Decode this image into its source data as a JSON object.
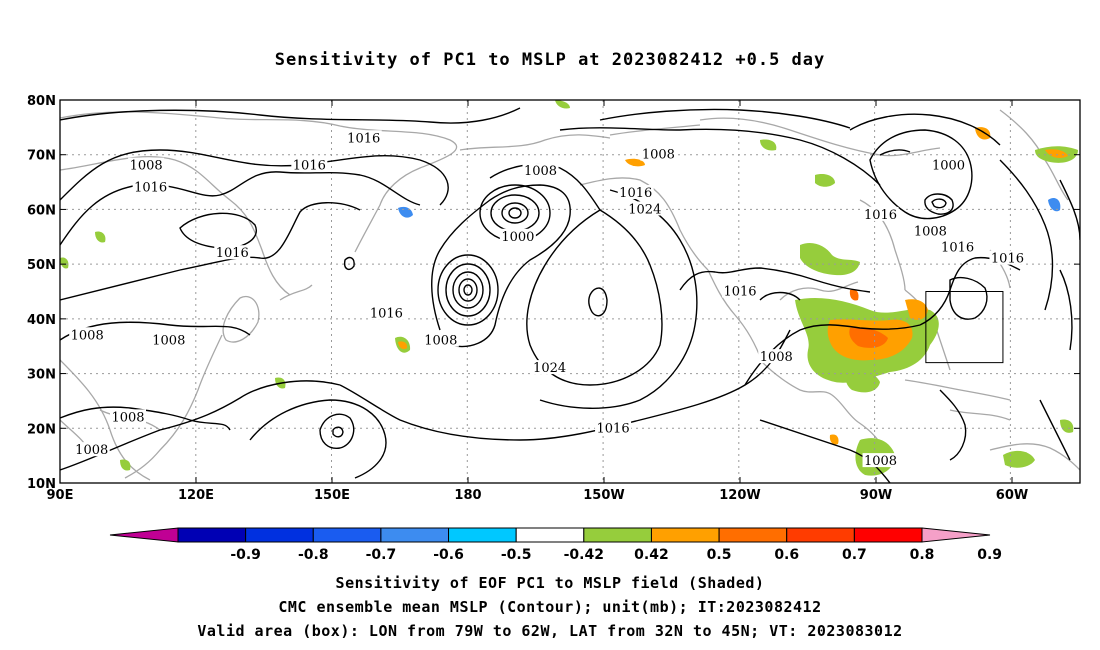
{
  "title": "Sensitivity of PC1 to MSLP at 2023082412 +0.5 day",
  "map": {
    "lon_ticks": [
      "90E",
      "120E",
      "150E",
      "180",
      "150W",
      "120W",
      "90W",
      "60W"
    ],
    "lat_ticks": [
      "80N",
      "70N",
      "60N",
      "50N",
      "40N",
      "30N",
      "20N",
      "10N"
    ],
    "contour_labels": [
      {
        "text": "1016",
        "lon": 157,
        "lat": 73
      },
      {
        "text": "1008",
        "lon": -138,
        "lat": 70
      },
      {
        "text": "1000",
        "lon": -74,
        "lat": 68
      },
      {
        "text": "1008",
        "lon": 109,
        "lat": 68
      },
      {
        "text": "1016",
        "lon": 110,
        "lat": 64
      },
      {
        "text": "1016",
        "lon": 145,
        "lat": 68
      },
      {
        "text": "1008",
        "lon": 196,
        "lat": 67
      },
      {
        "text": "1016",
        "lon": -143,
        "lat": 63
      },
      {
        "text": "1024",
        "lon": -141,
        "lat": 60
      },
      {
        "text": "1016",
        "lon": -89,
        "lat": 59
      },
      {
        "text": "1000",
        "lon": 191,
        "lat": 55
      },
      {
        "text": "1008",
        "lon": -78,
        "lat": 56
      },
      {
        "text": "1016",
        "lon": -72,
        "lat": 53
      },
      {
        "text": "1016",
        "lon": 128,
        "lat": 52
      },
      {
        "text": "1016",
        "lon": -61,
        "lat": 51
      },
      {
        "text": "1016",
        "lon": -120,
        "lat": 45
      },
      {
        "text": "1016",
        "lon": 162,
        "lat": 41
      },
      {
        "text": "1008",
        "lon": 96,
        "lat": 37
      },
      {
        "text": "1008",
        "lon": 174,
        "lat": 36
      },
      {
        "text": "1008",
        "lon": 114,
        "lat": 36
      },
      {
        "text": "1008",
        "lon": -112,
        "lat": 33
      },
      {
        "text": "1024",
        "lon": -162,
        "lat": 31
      },
      {
        "text": "1008",
        "lon": 105,
        "lat": 22
      },
      {
        "text": "1016",
        "lon": -148,
        "lat": 20
      },
      {
        "text": "1008",
        "lon": 97,
        "lat": 16
      },
      {
        "text": "1008",
        "lon": -89,
        "lat": 14
      }
    ],
    "valid_box": {
      "lon_min": -79,
      "lon_max": -62,
      "lat_min": 32,
      "lat_max": 45
    }
  },
  "colorbar": {
    "labels": [
      "-0.9",
      "-0.8",
      "-0.7",
      "-0.6",
      "-0.5",
      "-0.42",
      "0.42",
      "0.5",
      "0.6",
      "0.7",
      "0.8",
      "0.9"
    ],
    "colors": [
      "#c00094",
      "#0000b4",
      "#0030e0",
      "#1a5cf0",
      "#3d8cf0",
      "#00c8ff",
      "#ffffff",
      "#96cd3c",
      "#ffa000",
      "#ff6e00",
      "#ff3c00",
      "#ff0000",
      "#f5a0c8"
    ]
  },
  "captions": {
    "line1": "Sensitivity of EOF PC1 to MSLP field (Shaded)",
    "line2": "CMC ensemble mean MSLP (Contour); unit(mb); IT:2023082412",
    "line3": "Valid area (box): LON from 79W to 62W, LAT from 32N to 45N; VT: 2023083012"
  }
}
